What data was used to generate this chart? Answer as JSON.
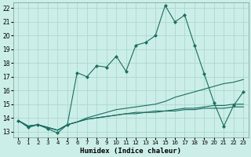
{
  "xlabel": "Humidex (Indice chaleur)",
  "background_color": "#cceee8",
  "grid_color": "#aad8d0",
  "line_color": "#1a6e60",
  "xlim": [
    -0.5,
    23.5
  ],
  "ylim": [
    12.6,
    22.4
  ],
  "xticks": [
    0,
    1,
    2,
    3,
    4,
    5,
    6,
    7,
    8,
    9,
    10,
    11,
    12,
    13,
    14,
    15,
    16,
    17,
    18,
    19,
    20,
    21,
    22,
    23
  ],
  "yticks": [
    13,
    14,
    15,
    16,
    17,
    18,
    19,
    20,
    21,
    22
  ],
  "series": [
    [
      13.8,
      13.3,
      13.5,
      13.2,
      12.9,
      13.5,
      17.3,
      17.0,
      17.8,
      17.7,
      18.5,
      17.4,
      19.3,
      19.5,
      20.0,
      22.2,
      21.0,
      21.5,
      19.3,
      17.2,
      15.1,
      13.4,
      14.9,
      15.9
    ],
    [
      13.8,
      13.4,
      13.5,
      13.3,
      13.1,
      13.5,
      13.7,
      14.0,
      14.2,
      14.4,
      14.6,
      14.7,
      14.8,
      14.9,
      15.0,
      15.2,
      15.5,
      15.7,
      15.9,
      16.1,
      16.3,
      16.5,
      16.6,
      16.8
    ],
    [
      13.8,
      13.4,
      13.5,
      13.3,
      13.1,
      13.5,
      13.7,
      13.9,
      14.0,
      14.1,
      14.2,
      14.3,
      14.4,
      14.4,
      14.5,
      14.5,
      14.6,
      14.7,
      14.7,
      14.8,
      14.9,
      14.9,
      15.0,
      15.0
    ],
    [
      13.8,
      13.4,
      13.5,
      13.3,
      13.1,
      13.5,
      13.7,
      13.9,
      14.0,
      14.1,
      14.2,
      14.3,
      14.3,
      14.4,
      14.4,
      14.5,
      14.5,
      14.6,
      14.6,
      14.7,
      14.7,
      14.7,
      14.8,
      14.8
    ]
  ]
}
